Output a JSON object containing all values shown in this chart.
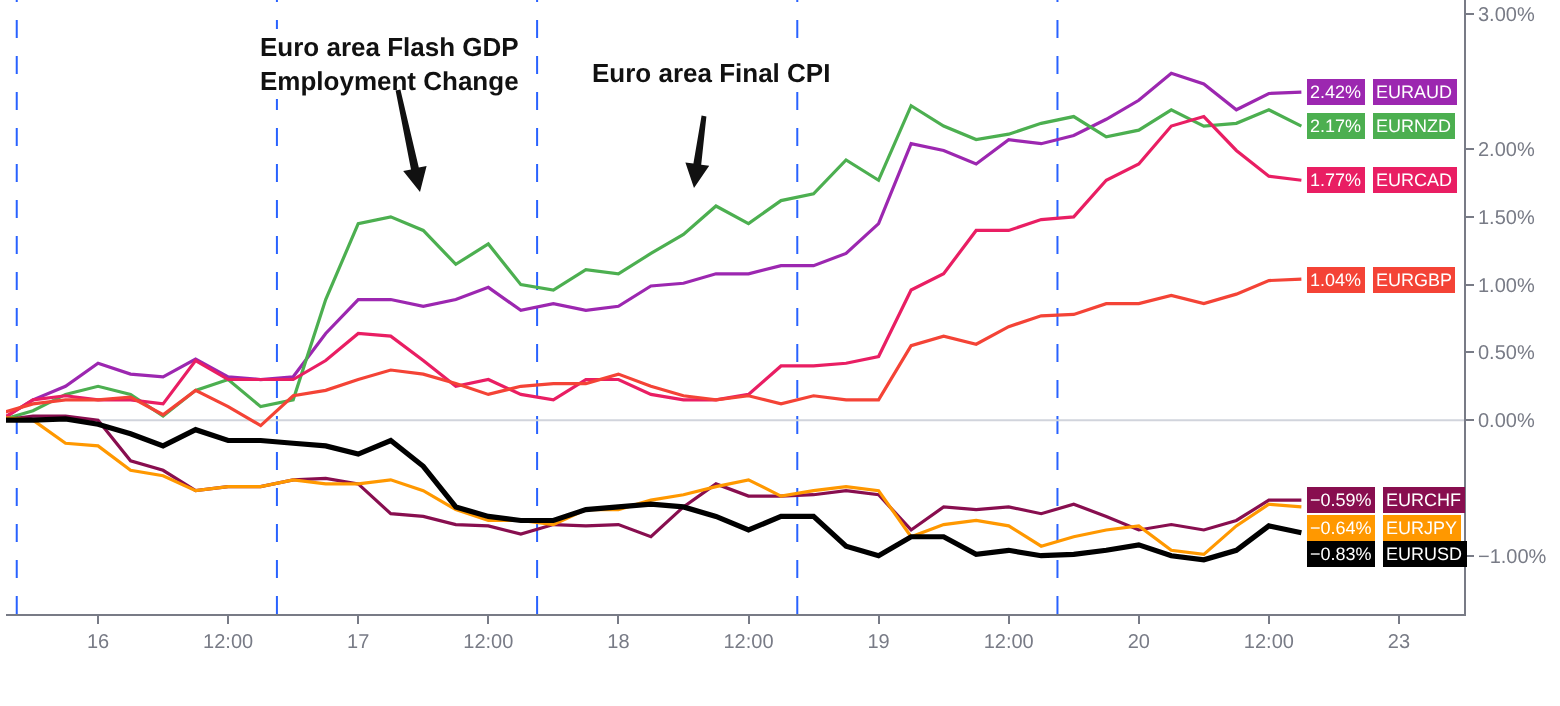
{
  "chart_data": {
    "type": "line",
    "categories": [
      null,
      null,
      null,
      "16",
      null,
      null,
      null,
      "12:00",
      null,
      null,
      null,
      "17",
      null,
      null,
      null,
      "12:00",
      null,
      null,
      null,
      "18",
      null,
      null,
      null,
      "12:00",
      null,
      null,
      null,
      "19",
      null,
      null,
      null,
      "12:00",
      null,
      null,
      null,
      "20",
      null,
      null,
      null,
      "12:00",
      null,
      null,
      null,
      "23"
    ],
    "series": [
      {
        "name": "EURAUD",
        "color": "#9c27b0",
        "values": [
          0,
          0.15,
          0.25,
          0.42,
          0.34,
          0.32,
          0.45,
          0.32,
          0.3,
          0.32,
          0.64,
          0.89,
          0.89,
          0.84,
          0.89,
          0.98,
          0.81,
          0.86,
          0.81,
          0.84,
          0.99,
          1.01,
          1.08,
          1.08,
          1.14,
          1.14,
          1.23,
          1.45,
          2.04,
          1.99,
          1.89,
          2.07,
          2.04,
          2.1,
          2.22,
          2.36,
          2.56,
          2.48,
          2.29,
          2.41,
          2.42,
          null,
          null,
          null
        ],
        "value_labels": [
          null,
          null,
          null,
          null,
          null,
          null,
          null,
          null,
          null,
          null,
          null,
          null,
          null,
          null,
          null,
          null,
          null,
          null,
          null,
          null,
          null,
          null,
          null,
          null,
          null,
          null,
          null,
          null,
          null,
          null,
          null,
          null,
          null,
          null,
          null,
          null,
          null,
          null,
          null,
          null,
          "2.42%",
          null,
          null,
          null
        ]
      },
      {
        "name": "EURNZD",
        "color": "#4caf50",
        "values": [
          0,
          0.07,
          0.19,
          0.25,
          0.19,
          0.03,
          0.22,
          0.3,
          0.1,
          0.15,
          0.89,
          1.45,
          1.5,
          1.4,
          1.15,
          1.3,
          1.0,
          0.96,
          1.11,
          1.08,
          1.23,
          1.37,
          1.58,
          1.45,
          1.62,
          1.67,
          1.92,
          1.77,
          2.32,
          2.17,
          2.07,
          2.11,
          2.19,
          2.24,
          2.09,
          2.14,
          2.29,
          2.17,
          2.19,
          2.29,
          2.17,
          null,
          null,
          null
        ],
        "value_labels": [
          null,
          null,
          null,
          null,
          null,
          null,
          null,
          null,
          null,
          null,
          null,
          null,
          null,
          null,
          null,
          null,
          null,
          null,
          null,
          null,
          null,
          null,
          null,
          null,
          null,
          null,
          null,
          null,
          null,
          null,
          null,
          null,
          null,
          null,
          null,
          null,
          null,
          null,
          null,
          null,
          "2.17%",
          null,
          null,
          null
        ]
      },
      {
        "name": "EURCAD",
        "color": "#e91e63",
        "values": [
          0,
          0.15,
          0.18,
          0.15,
          0.15,
          0.12,
          0.44,
          0.3,
          0.3,
          0.3,
          0.44,
          0.64,
          0.62,
          0.44,
          0.25,
          0.3,
          0.19,
          0.15,
          0.3,
          0.3,
          0.19,
          0.15,
          0.15,
          0.19,
          0.4,
          0.4,
          0.42,
          0.47,
          0.96,
          1.08,
          1.4,
          1.4,
          1.48,
          1.5,
          1.77,
          1.89,
          2.17,
          2.24,
          1.99,
          1.8,
          1.77,
          null,
          null,
          null
        ],
        "value_labels": [
          null,
          null,
          null,
          null,
          null,
          null,
          null,
          null,
          null,
          null,
          null,
          null,
          null,
          null,
          null,
          null,
          null,
          null,
          null,
          null,
          null,
          null,
          null,
          null,
          null,
          null,
          null,
          null,
          null,
          null,
          null,
          null,
          null,
          null,
          null,
          null,
          null,
          null,
          null,
          null,
          "1.77%",
          null,
          null,
          null
        ]
      },
      {
        "name": "EURGBP",
        "color": "#f44336",
        "values": [
          0.05,
          0.12,
          0.15,
          0.15,
          0.17,
          0.04,
          0.22,
          0.1,
          -0.04,
          0.18,
          0.22,
          0.3,
          0.37,
          0.34,
          0.27,
          0.19,
          0.25,
          0.27,
          0.27,
          0.34,
          0.25,
          0.18,
          0.15,
          0.18,
          0.12,
          0.18,
          0.15,
          0.15,
          0.55,
          0.62,
          0.56,
          0.69,
          0.77,
          0.78,
          0.86,
          0.86,
          0.92,
          0.86,
          0.93,
          1.03,
          1.04,
          null,
          null,
          null
        ],
        "value_labels": [
          null,
          null,
          null,
          null,
          null,
          null,
          null,
          null,
          null,
          null,
          null,
          null,
          null,
          null,
          null,
          null,
          null,
          null,
          null,
          null,
          null,
          null,
          null,
          null,
          null,
          null,
          null,
          null,
          null,
          null,
          null,
          null,
          null,
          null,
          null,
          null,
          null,
          null,
          null,
          null,
          "1.04%",
          null,
          null,
          null
        ]
      },
      {
        "name": "EURCHF",
        "color": "#880e4f",
        "values": [
          0,
          0.03,
          0.03,
          0,
          -0.3,
          -0.37,
          -0.52,
          -0.49,
          -0.49,
          -0.44,
          -0.43,
          -0.47,
          -0.69,
          -0.71,
          -0.77,
          -0.78,
          -0.84,
          -0.77,
          -0.78,
          -0.77,
          -0.86,
          -0.64,
          -0.47,
          -0.56,
          -0.56,
          -0.55,
          -0.52,
          -0.55,
          -0.81,
          -0.64,
          -0.66,
          -0.64,
          -0.69,
          -0.62,
          -0.71,
          -0.81,
          -0.77,
          -0.81,
          -0.74,
          -0.59,
          -0.59,
          null,
          null,
          null
        ],
        "value_labels": [
          null,
          null,
          null,
          null,
          null,
          null,
          null,
          null,
          null,
          null,
          null,
          null,
          null,
          null,
          null,
          null,
          null,
          null,
          null,
          null,
          null,
          null,
          null,
          null,
          null,
          null,
          null,
          null,
          null,
          null,
          null,
          null,
          null,
          null,
          null,
          null,
          null,
          null,
          null,
          null,
          "−0.59%",
          null,
          null,
          null
        ]
      },
      {
        "name": "EURJPY",
        "color": "#ff9800",
        "values": [
          0.02,
          0,
          -0.17,
          -0.19,
          -0.37,
          -0.41,
          -0.52,
          -0.49,
          -0.49,
          -0.44,
          -0.47,
          -0.47,
          -0.44,
          -0.52,
          -0.66,
          -0.74,
          -0.74,
          -0.77,
          -0.66,
          -0.66,
          -0.59,
          -0.55,
          -0.49,
          -0.44,
          -0.56,
          -0.52,
          -0.49,
          -0.52,
          -0.86,
          -0.77,
          -0.74,
          -0.78,
          -0.93,
          -0.86,
          -0.81,
          -0.78,
          -0.96,
          -0.99,
          -0.78,
          -0.62,
          -0.64,
          null,
          null,
          null
        ],
        "value_labels": [
          null,
          null,
          null,
          null,
          null,
          null,
          null,
          null,
          null,
          null,
          null,
          null,
          null,
          null,
          null,
          null,
          null,
          null,
          null,
          null,
          null,
          null,
          null,
          null,
          null,
          null,
          null,
          null,
          null,
          null,
          null,
          null,
          null,
          null,
          null,
          null,
          null,
          null,
          null,
          null,
          "−0.64%",
          null,
          null,
          null
        ]
      },
      {
        "name": "EURUSD",
        "color": "#000000",
        "values": [
          0,
          0,
          0.01,
          -0.03,
          -0.1,
          -0.19,
          -0.07,
          -0.15,
          -0.15,
          -0.17,
          -0.19,
          -0.25,
          -0.15,
          -0.34,
          -0.64,
          -0.71,
          -0.74,
          -0.74,
          -0.66,
          -0.64,
          -0.62,
          -0.64,
          -0.71,
          -0.81,
          -0.71,
          -0.71,
          -0.93,
          -1.0,
          -0.86,
          -0.86,
          -0.99,
          -0.96,
          -1.0,
          -0.99,
          -0.96,
          -0.92,
          -1.0,
          -1.03,
          -0.96,
          -0.78,
          -0.83,
          null,
          null,
          null
        ],
        "value_labels": [
          null,
          null,
          null,
          null,
          null,
          null,
          null,
          null,
          null,
          null,
          null,
          null,
          null,
          null,
          null,
          null,
          null,
          null,
          null,
          null,
          null,
          null,
          null,
          null,
          null,
          null,
          null,
          null,
          null,
          null,
          null,
          null,
          null,
          null,
          null,
          null,
          null,
          null,
          null,
          null,
          "−0.83%",
          null,
          null,
          null
        ]
      }
    ],
    "ylim": [
      -1.43,
      3.1
    ],
    "yticks": [
      {
        "value": 3,
        "label": "3.00%"
      },
      {
        "value": 2,
        "label": "2.00%"
      },
      {
        "value": 1.5,
        "label": "1.50%"
      },
      {
        "value": 1,
        "label": "1.00%"
      },
      {
        "value": 0.5,
        "label": "0.50%"
      },
      {
        "value": 0,
        "label": "0.00%"
      },
      {
        "value": -1,
        "label": "−1.00%"
      }
    ],
    "ref_lines": [
      {
        "axis": "y",
        "value": 0,
        "color": "#d1d4dc",
        "line_style": "solid"
      }
    ],
    "annotations": [
      "Euro area Flash GDP\nEmployment Change",
      "Euro area Final CPI"
    ],
    "grid": false,
    "legend": "right",
    "marker": "none",
    "line_style": "solid"
  }
}
